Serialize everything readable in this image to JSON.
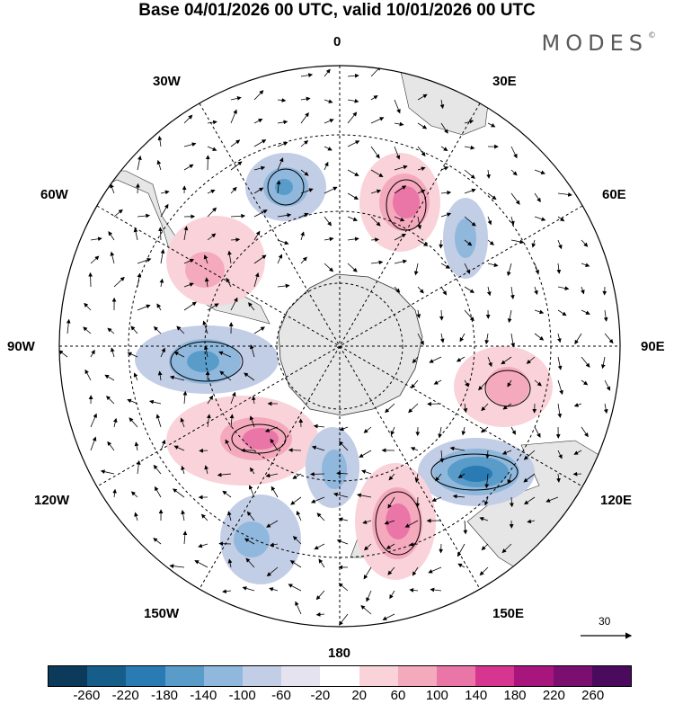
{
  "header": {
    "title": "Base 04/01/2026 00 UTC, valid 10/01/2026 00 UTC",
    "brand": "MODES",
    "brand_mark": "©"
  },
  "map": {
    "projection": "south-polar-stereographic",
    "longitude_labels": {
      "top": "0",
      "top_left": "30W",
      "top_right": "30E",
      "upper_left": "60W",
      "upper_right": "60E",
      "left": "90W",
      "right": "90E",
      "lower_left": "120W",
      "lower_right": "120E",
      "bottom_left": "150W",
      "bottom_right": "150E",
      "bottom": "180"
    },
    "reference_vector": "30"
  },
  "legend": {
    "tick_labels": [
      "-260",
      "-220",
      "-180",
      "-140",
      "-100",
      "-60",
      "-20",
      "20",
      "60",
      "100",
      "140",
      "180",
      "220",
      "260"
    ],
    "colors": [
      "#0c3a5a",
      "#165d8a",
      "#2a7bb3",
      "#5a9cc9",
      "#8fb8dc",
      "#c2cde6",
      "#e6e3f1",
      "#ffffff",
      "#f9d3d9",
      "#f4a9bd",
      "#ea75a7",
      "#d63590",
      "#a8157d",
      "#7a0f70",
      "#4a0a5e"
    ]
  },
  "colors": {
    "land": "#e6e6e6",
    "positive_anomaly": "#ea75a7",
    "negative_anomaly": "#5a9cc9"
  }
}
